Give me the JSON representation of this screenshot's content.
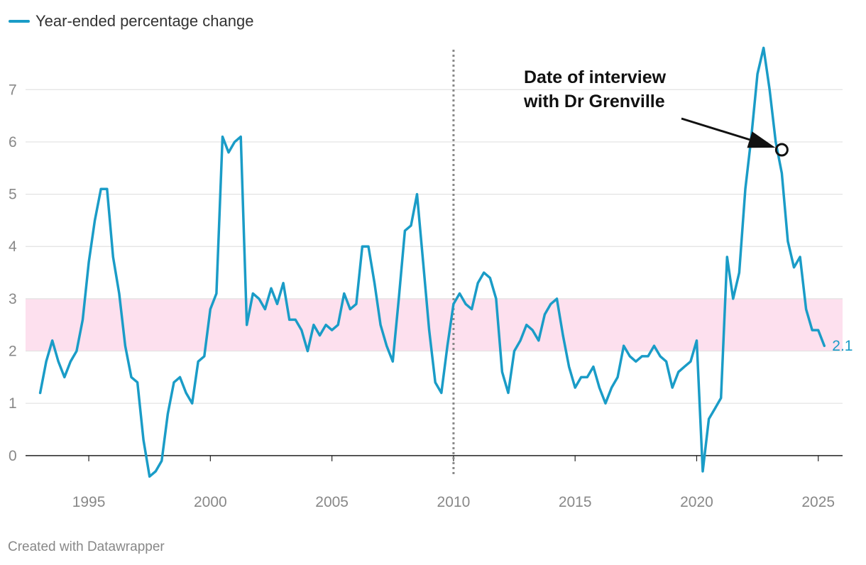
{
  "legend": {
    "label": "Year-ended percentage change",
    "color": "#1a9cc7"
  },
  "credit": "Created with Datawrapper",
  "chart_data": {
    "type": "line",
    "title": "",
    "xlabel": "",
    "ylabel": "",
    "ylim": [
      -0.45,
      7.9
    ],
    "xlim": [
      1992.4,
      2026.0
    ],
    "y_ticks": [
      "0",
      "1",
      "2",
      "3",
      "4",
      "5",
      "6",
      "7"
    ],
    "x_ticks": [
      "1995",
      "2000",
      "2005",
      "2010",
      "2015",
      "2020",
      "2025"
    ],
    "target_band": {
      "from": 2,
      "to": 3,
      "color": "#fde0ee"
    },
    "divider_year": 2010,
    "series": [
      {
        "name": "Year-ended percentage change",
        "color": "#1a9cc7",
        "start_year": 1993,
        "start_quarter": 1,
        "values": [
          1.2,
          1.8,
          2.2,
          1.8,
          1.5,
          1.8,
          2.0,
          2.6,
          3.7,
          4.5,
          5.1,
          5.1,
          3.8,
          3.1,
          2.1,
          1.5,
          1.4,
          0.3,
          -0.4,
          -0.3,
          -0.1,
          0.8,
          1.4,
          1.5,
          1.2,
          1.0,
          1.8,
          1.9,
          2.8,
          3.1,
          6.1,
          5.8,
          6.0,
          6.1,
          2.5,
          3.1,
          3.0,
          2.8,
          3.2,
          2.9,
          3.3,
          2.6,
          2.6,
          2.4,
          2.0,
          2.5,
          2.3,
          2.5,
          2.4,
          2.5,
          3.1,
          2.8,
          2.9,
          4.0,
          4.0,
          3.3,
          2.5,
          2.1,
          1.8,
          3.0,
          4.3,
          4.4,
          5.0,
          3.7,
          2.4,
          1.4,
          1.2,
          2.1,
          2.9,
          3.1,
          2.9,
          2.8,
          3.3,
          3.5,
          3.4,
          3.0,
          1.6,
          1.2,
          2.0,
          2.2,
          2.5,
          2.4,
          2.2,
          2.7,
          2.9,
          3.0,
          2.3,
          1.7,
          1.3,
          1.5,
          1.5,
          1.7,
          1.3,
          1.0,
          1.3,
          1.5,
          2.1,
          1.9,
          1.8,
          1.9,
          1.9,
          2.1,
          1.9,
          1.8,
          1.3,
          1.6,
          1.7,
          1.8,
          2.2,
          -0.3,
          0.7,
          0.9,
          1.1,
          3.8,
          3.0,
          3.5,
          5.1,
          6.1,
          7.3,
          7.8,
          7.0,
          6.0,
          5.4,
          4.1,
          3.6,
          3.8,
          2.8,
          2.4,
          2.4,
          2.1
        ]
      }
    ],
    "end_label": "2.1",
    "annotation": {
      "lines": [
        "Date of interview",
        "with Dr Grenville"
      ],
      "target_year": 2023.5,
      "target_value": 5.85
    }
  }
}
